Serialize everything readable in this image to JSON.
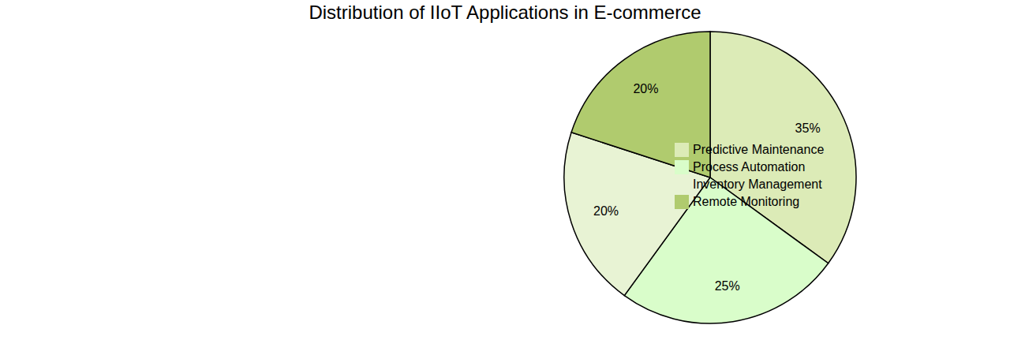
{
  "chart_data": {
    "type": "pie",
    "title": "Distribution of IIoT Applications in E-commerce",
    "categories": [
      "Predictive Maintenance",
      "Process Automation",
      "Inventory Management",
      "Remote Monitoring"
    ],
    "values": [
      35,
      25,
      20,
      20
    ],
    "value_labels": [
      "35%",
      "25%",
      "20%",
      "20%"
    ],
    "colors": [
      "#dcebb7",
      "#d9fdca",
      "#e8f3d4",
      "#b0cb6e"
    ],
    "data_labels": true,
    "legend": "right"
  }
}
